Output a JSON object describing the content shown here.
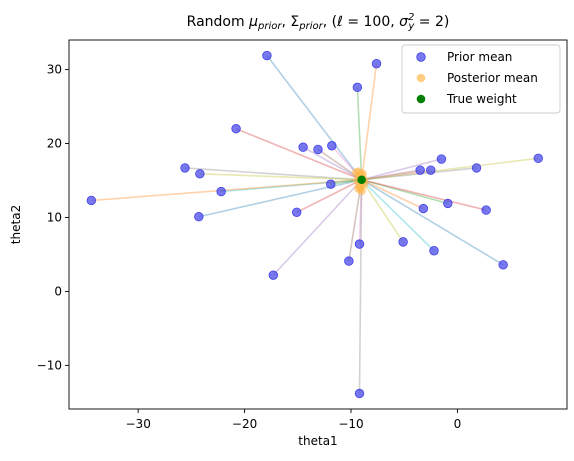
{
  "chart_data": {
    "type": "scatter",
    "title_parts": {
      "prefix": "Random ",
      "mu": "μ",
      "mu_sub": "prior",
      "sep": ", ",
      "Sigma": "Σ",
      "Sigma_sub": "prior",
      "paren_open": ", (",
      "ell": "ℓ",
      "ell_eq": " = 100, ",
      "sigma": "σ",
      "sigma_sub": "y",
      "sigma_sup": "2",
      "sigma_eq": " = 2)"
    },
    "xlabel": "theta1",
    "ylabel": "theta2",
    "xlim": [
      -36.5,
      10.3
    ],
    "ylim": [
      -15.9,
      34.0
    ],
    "xticks": [
      -30,
      -20,
      -10,
      0
    ],
    "yticks": [
      -10,
      0,
      10,
      20,
      30
    ],
    "xtick_labels": [
      "−30",
      "−20",
      "−10",
      "0"
    ],
    "ytick_labels": [
      "−10",
      "0",
      "10",
      "20",
      "30"
    ],
    "grid": false,
    "legend_position": "top-right",
    "true_weight": [
      -9.0,
      15.1
    ],
    "prior_means": [
      [
        -17.9,
        31.9
      ],
      [
        -7.6,
        30.8
      ],
      [
        -9.4,
        27.6
      ],
      [
        -20.8,
        22.0
      ],
      [
        -14.5,
        19.5
      ],
      [
        -13.1,
        19.2
      ],
      [
        -11.8,
        19.7
      ],
      [
        -25.6,
        16.7
      ],
      [
        -24.2,
        15.9
      ],
      [
        -22.2,
        13.5
      ],
      [
        -24.3,
        10.1
      ],
      [
        -34.4,
        12.3
      ],
      [
        -11.9,
        14.5
      ],
      [
        -15.1,
        10.7
      ],
      [
        -17.3,
        2.2
      ],
      [
        -10.2,
        4.1
      ],
      [
        -9.2,
        6.4
      ],
      [
        -9.2,
        -13.8
      ],
      [
        -5.1,
        6.7
      ],
      [
        -2.2,
        5.5
      ],
      [
        4.3,
        3.6
      ],
      [
        -3.2,
        11.2
      ],
      [
        -0.9,
        11.9
      ],
      [
        2.7,
        11.0
      ],
      [
        -1.5,
        17.9
      ],
      [
        -3.5,
        16.4
      ],
      [
        -2.5,
        16.4
      ],
      [
        1.8,
        16.7
      ],
      [
        7.6,
        18.0
      ]
    ],
    "posterior_means": [
      [
        -9.3,
        16.2
      ],
      [
        -9.1,
        15.8
      ],
      [
        -9.2,
        15.5
      ],
      [
        -8.9,
        15.3
      ],
      [
        -9.4,
        15.0
      ],
      [
        -9.0,
        14.8
      ],
      [
        -8.8,
        14.5
      ],
      [
        -9.2,
        14.3
      ],
      [
        -9.1,
        14.0
      ],
      [
        -9.0,
        13.6
      ],
      [
        -9.3,
        13.9
      ],
      [
        -8.9,
        15.9
      ],
      [
        -9.5,
        16.1
      ],
      [
        -9.1,
        15.6
      ],
      [
        -8.8,
        15.0
      ]
    ],
    "line_colors": [
      "#1f77b4",
      "#ff7f0e",
      "#2ca02c",
      "#d62728",
      "#9467bd",
      "#8c564b",
      "#e377c2",
      "#7f7f7f",
      "#bcbd22",
      "#17becf"
    ],
    "series": [
      {
        "name": "Prior mean",
        "color": "#4040e8"
      },
      {
        "name": "Posterior mean",
        "color": "#ffb84d"
      },
      {
        "name": "True weight",
        "color": "#008000"
      }
    ]
  }
}
